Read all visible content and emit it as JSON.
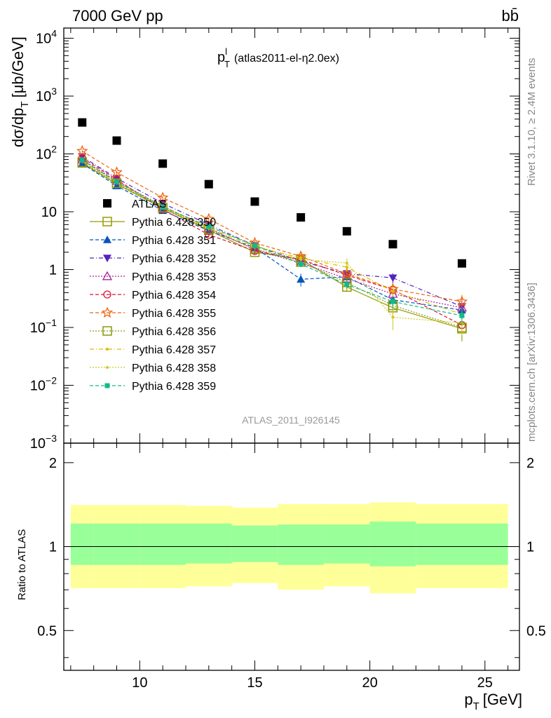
{
  "header": {
    "energy_label": "7000 GeV pp",
    "process_label": "bb̄",
    "plot_title_main": "p",
    "plot_title_sup": "l",
    "plot_title_sub": "T",
    "plot_title_rest": "(atlas2011-el-η2.0ex)",
    "side_label_top": "Rivet 3.1.10, ≥ 2.4M events",
    "side_label_bottom": "mcplots.cern.ch [arXiv:1306.3436]",
    "analysis_id": "ATLAS_2011_I926145"
  },
  "chart_data": [
    {
      "type": "scatter",
      "panel": "main",
      "ylabel": "dσ/dp_T [μb/GeV]",
      "ylabel_main": "dσ/dp",
      "ylabel_sub": "T",
      "ylabel_unit": "[μb/GeV]",
      "yscale": "log",
      "ylim": [
        0.001,
        15000
      ],
      "xlim": [
        6.7,
        26.5
      ],
      "y_tick_labels": [
        {
          "value": 10000,
          "base": "10",
          "exp": "4"
        },
        {
          "value": 1000,
          "base": "10",
          "exp": "3"
        },
        {
          "value": 100,
          "base": "10",
          "exp": "2"
        },
        {
          "value": 10,
          "base": "10",
          "exp": ""
        },
        {
          "value": 1,
          "base": "1",
          "exp": ""
        },
        {
          "value": 0.1,
          "base": "10",
          "exp": "−1"
        },
        {
          "value": 0.01,
          "base": "10",
          "exp": "−2"
        },
        {
          "value": 0.001,
          "base": "10",
          "exp": "−3"
        }
      ],
      "x": [
        7.5,
        9.0,
        11.0,
        13.0,
        15.0,
        17.0,
        19.0,
        21.0,
        24.0
      ],
      "x_bins": [
        [
          7,
          8
        ],
        [
          8,
          10
        ],
        [
          10,
          12
        ],
        [
          12,
          14
        ],
        [
          14,
          16
        ],
        [
          16,
          18
        ],
        [
          18,
          20
        ],
        [
          20,
          22
        ],
        [
          22,
          26
        ]
      ],
      "series": [
        {
          "name": "ATLAS",
          "color": "#000000",
          "marker": "square-filled",
          "dash": "none",
          "values": [
            350,
            170,
            68,
            30,
            15,
            8.0,
            4.6,
            2.75,
            1.28
          ],
          "errors": [
            0,
            0,
            0,
            0,
            0,
            0,
            0,
            0,
            0
          ]
        },
        {
          "name": "Pythia 6.428 350",
          "color": "#999900",
          "marker": "square-open",
          "dash": "solid",
          "values": [
            70,
            30,
            11.5,
            4.8,
            2.0,
            1.5,
            0.5,
            0.22,
            0.095
          ],
          "errors": [
            0.06,
            0.06,
            0.07,
            0.08,
            0.1,
            0.12,
            0.15,
            0.3,
            0.4
          ]
        },
        {
          "name": "Pythia 6.428 351",
          "color": "#0055bb",
          "marker": "triangle-up-filled",
          "dash": "dashed",
          "values": [
            68,
            28,
            10.5,
            4.7,
            2.4,
            0.68,
            0.75,
            0.3,
            0.2
          ],
          "errors": [
            0.06,
            0.06,
            0.07,
            0.08,
            0.1,
            0.25,
            0.15,
            0.3,
            0.3
          ]
        },
        {
          "name": "Pythia 6.428 352",
          "color": "#5522bb",
          "marker": "triangle-down-filled",
          "dash": "dashdot",
          "values": [
            90,
            38,
            14,
            6.0,
            2.6,
            1.4,
            0.85,
            0.72,
            0.23
          ],
          "errors": [
            0.06,
            0.06,
            0.07,
            0.08,
            0.1,
            0.12,
            0.15,
            0.2,
            0.3
          ]
        },
        {
          "name": "Pythia 6.428 353",
          "color": "#aa2299",
          "marker": "triangle-up-open",
          "dash": "dotted",
          "values": [
            80,
            34,
            12.5,
            5.2,
            2.2,
            1.3,
            0.7,
            0.38,
            0.22
          ],
          "errors": [
            0.06,
            0.06,
            0.07,
            0.08,
            0.1,
            0.12,
            0.15,
            0.2,
            0.3
          ]
        },
        {
          "name": "Pythia 6.428 354",
          "color": "#dd1133",
          "marker": "circle-open",
          "dash": "dashed",
          "values": [
            85,
            36,
            11,
            4.0,
            2.1,
            1.5,
            0.8,
            0.45,
            0.11
          ],
          "errors": [
            0.06,
            0.06,
            0.07,
            0.08,
            0.1,
            0.12,
            0.15,
            0.2,
            0.35
          ]
        },
        {
          "name": "Pythia 6.428 355",
          "color": "#ee6611",
          "marker": "star-open",
          "dash": "dashed",
          "values": [
            112,
            48,
            17.5,
            7.5,
            2.9,
            1.7,
            0.85,
            0.46,
            0.28
          ],
          "errors": [
            0.06,
            0.06,
            0.07,
            0.08,
            0.1,
            0.12,
            0.15,
            0.2,
            0.3
          ]
        },
        {
          "name": "Pythia 6.428 356",
          "color": "#889911",
          "marker": "square-open",
          "dash": "dotted",
          "values": [
            72,
            31,
            11.8,
            5.0,
            2.3,
            1.35,
            0.6,
            0.24,
            0.1
          ],
          "errors": [
            0.06,
            0.06,
            0.07,
            0.08,
            0.1,
            0.12,
            0.15,
            0.3,
            0.4
          ]
        },
        {
          "name": "Pythia 6.428 357",
          "color": "#ddbb00",
          "marker": "dot",
          "dash": "dashdot",
          "values": [
            75,
            32,
            12,
            5.2,
            2.5,
            1.6,
            1.1,
            0.42,
            0.17
          ],
          "errors": [
            0.06,
            0.06,
            0.07,
            0.08,
            0.1,
            0.12,
            0.15,
            0.2,
            0.3
          ]
        },
        {
          "name": "Pythia 6.428 358",
          "color": "#cccc22",
          "marker": "dot",
          "dash": "dotted",
          "values": [
            76,
            33,
            12.5,
            5.5,
            2.6,
            1.5,
            1.3,
            0.15,
            0.12
          ],
          "errors": [
            0.06,
            0.06,
            0.07,
            0.08,
            0.1,
            0.12,
            0.2,
            0.4,
            0.4
          ]
        },
        {
          "name": "Pythia 6.428 359",
          "color": "#11bb88",
          "marker": "square-filled-small",
          "dash": "dashed",
          "values": [
            78,
            33,
            12,
            5.6,
            2.6,
            1.25,
            0.55,
            0.28,
            0.16
          ],
          "errors": [
            0.06,
            0.06,
            0.07,
            0.08,
            0.1,
            0.12,
            0.15,
            0.25,
            0.3
          ]
        }
      ]
    },
    {
      "type": "area",
      "panel": "ratio",
      "ylabel": "Ratio to ATLAS",
      "xlabel": "p_T [GeV]",
      "xlabel_main": "p",
      "xlabel_sub": "T",
      "xlabel_unit": "[GeV]",
      "xlim": [
        6.7,
        26.5
      ],
      "ylim": [
        0.36,
        2.35
      ],
      "y_tick_labels": [
        {
          "value": 2,
          "label": "2"
        },
        {
          "value": 1,
          "label": "1"
        },
        {
          "value": 0.5,
          "label": "0.5"
        }
      ],
      "x_tick_labels": [
        {
          "value": 10,
          "label": "10"
        },
        {
          "value": 15,
          "label": "15"
        },
        {
          "value": 20,
          "label": "20"
        },
        {
          "value": 25,
          "label": "25"
        }
      ],
      "reference": 1,
      "x_bins": [
        [
          7,
          8
        ],
        [
          8,
          10
        ],
        [
          10,
          12
        ],
        [
          12,
          14
        ],
        [
          14,
          16
        ],
        [
          16,
          18
        ],
        [
          18,
          20
        ],
        [
          20,
          22
        ],
        [
          22,
          26
        ]
      ],
      "stat_band_low": [
        0.86,
        0.86,
        0.86,
        0.87,
        0.88,
        0.86,
        0.87,
        0.85,
        0.86
      ],
      "stat_band_high": [
        1.21,
        1.21,
        1.21,
        1.21,
        1.19,
        1.2,
        1.2,
        1.23,
        1.21
      ],
      "total_band_low": [
        0.71,
        0.71,
        0.71,
        0.72,
        0.74,
        0.7,
        0.72,
        0.68,
        0.71
      ],
      "total_band_high": [
        1.41,
        1.41,
        1.41,
        1.4,
        1.38,
        1.42,
        1.42,
        1.44,
        1.42
      ],
      "colors": {
        "stat": "#99ff99",
        "total": "#ffff99"
      }
    }
  ]
}
